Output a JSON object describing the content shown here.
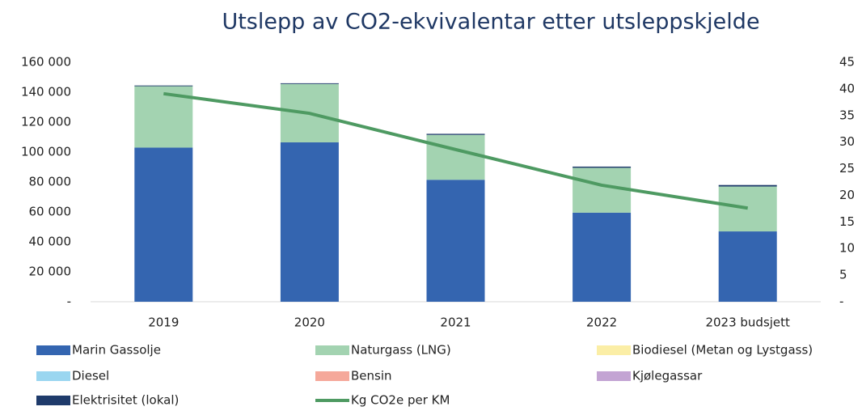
{
  "chart_data": {
    "type": "bar",
    "stacked": true,
    "title": "Utslepp av CO2-ekvivalentar etter utsleppskjelde",
    "categories": [
      "2019",
      "2020",
      "2021",
      "2022",
      "2023 budsjett"
    ],
    "series": [
      {
        "name": "Marin Gassolje",
        "color": "#3465b0",
        "values": [
          103000,
          106500,
          81500,
          59500,
          47000
        ]
      },
      {
        "name": "Naturgass (LNG)",
        "color": "#a3d3b1",
        "values": [
          41000,
          39000,
          30000,
          30000,
          30000
        ]
      },
      {
        "name": "Biodiesel (Metan og Lystgass)",
        "color": "#fbeea6",
        "values": [
          0,
          0,
          0,
          0,
          0
        ]
      },
      {
        "name": "Diesel",
        "color": "#9ad6f0",
        "values": [
          0,
          0,
          0,
          0,
          0
        ]
      },
      {
        "name": "Bensin",
        "color": "#f5a89a",
        "values": [
          0,
          0,
          0,
          0,
          0
        ]
      },
      {
        "name": "Kjølegassar",
        "color": "#c3a4d3",
        "values": [
          0,
          0,
          0,
          0,
          0
        ]
      },
      {
        "name": "Elektrisitet (lokal)",
        "color": "#1f3b6b",
        "values": [
          500,
          500,
          700,
          800,
          1000
        ]
      },
      {
        "name": "Kg CO2e per KM",
        "color": "#4e9a62",
        "type": "line",
        "axis": "y2",
        "values": [
          39.1,
          35.4,
          28.6,
          21.9,
          17.6
        ]
      }
    ],
    "ylim": [
      0,
      160000
    ],
    "yticks": [
      {
        "value": 0,
        "label": "-"
      },
      {
        "value": 20000,
        "label": "20 000"
      },
      {
        "value": 40000,
        "label": "40 000"
      },
      {
        "value": 60000,
        "label": "60 000"
      },
      {
        "value": 80000,
        "label": "80 000"
      },
      {
        "value": 100000,
        "label": "100 000"
      },
      {
        "value": 120000,
        "label": "120 000"
      },
      {
        "value": 140000,
        "label": "140 000"
      },
      {
        "value": 160000,
        "label": "160 000"
      }
    ],
    "y2lim": [
      0,
      45
    ],
    "y2ticks": [
      {
        "value": 0,
        "label": "-"
      },
      5,
      10,
      15,
      20,
      25,
      30,
      35,
      40,
      45
    ]
  }
}
